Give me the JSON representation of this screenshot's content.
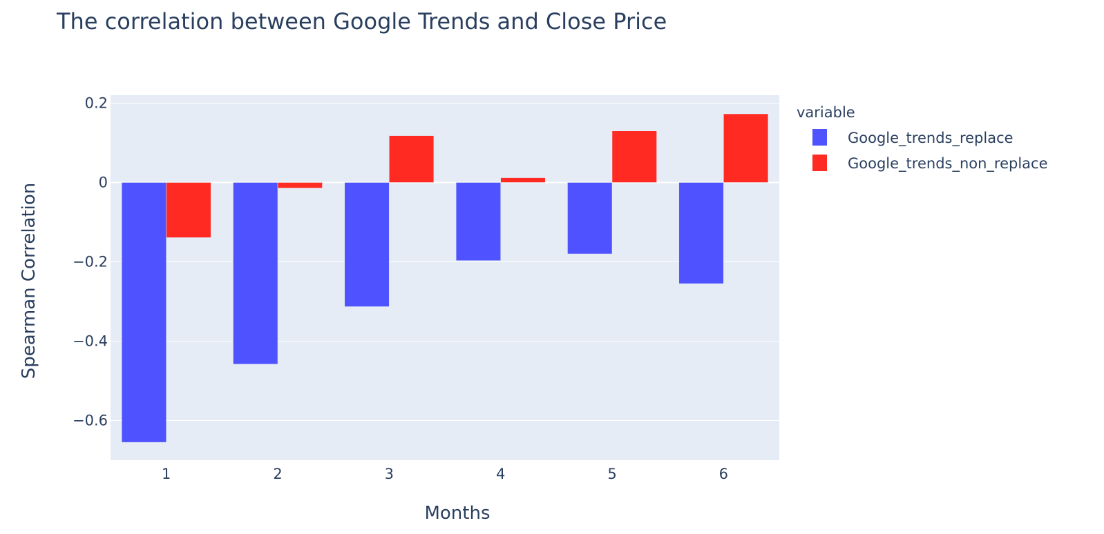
{
  "chart_data": {
    "type": "bar",
    "title": "The correlation between Google Trends and Close Price",
    "xlabel": "Months",
    "ylabel": "Spearman Correlation",
    "categories": [
      "1",
      "2",
      "3",
      "4",
      "5",
      "6"
    ],
    "series": [
      {
        "name": "Google_trends_replace",
        "color": "#4f52ff",
        "values": [
          -0.655,
          -0.458,
          -0.313,
          -0.197,
          -0.18,
          -0.255
        ]
      },
      {
        "name": "Google_trends_non_replace",
        "color": "#ff2a22",
        "values": [
          -0.139,
          -0.014,
          0.118,
          0.012,
          0.13,
          0.173
        ]
      }
    ],
    "ylim": [
      -0.7,
      0.22
    ],
    "yticks": [
      0.2,
      0,
      -0.2,
      -0.4,
      -0.6
    ],
    "ytick_labels": [
      "0.2",
      "0",
      "−0.2",
      "−0.4",
      "−0.6"
    ],
    "grid": true,
    "legend": {
      "title": "variable",
      "placement": "right"
    },
    "plot_background": "#e5ecf6",
    "grid_color": "#ffffff"
  }
}
